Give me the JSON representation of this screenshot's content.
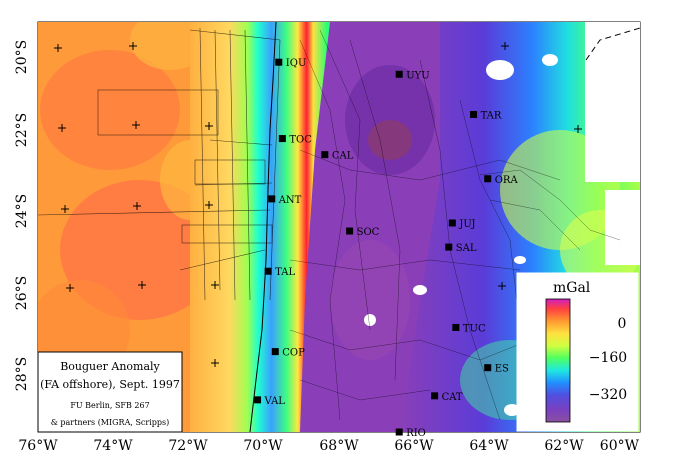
{
  "map": {
    "lon_ticks": [
      "76°W",
      "74°W",
      "72°W",
      "70°W",
      "68°W",
      "66°W",
      "64°W",
      "62°W",
      "60°W"
    ],
    "lat_ticks": [
      "20°S",
      "22°S",
      "24°S",
      "26°S",
      "28°S"
    ],
    "cities": [
      {
        "name": "IQU",
        "lon": -70.2,
        "lat": -20.2
      },
      {
        "name": "UYU",
        "lon": -66.8,
        "lat": -20.5
      },
      {
        "name": "TAR",
        "lon": -64.7,
        "lat": -21.5
      },
      {
        "name": "TOC",
        "lon": -70.1,
        "lat": -22.1
      },
      {
        "name": "CAL",
        "lon": -68.9,
        "lat": -22.5
      },
      {
        "name": "ORA",
        "lon": -64.3,
        "lat": -23.1
      },
      {
        "name": "ANT",
        "lon": -70.4,
        "lat": -23.6
      },
      {
        "name": "JUJ",
        "lon": -65.3,
        "lat": -24.2
      },
      {
        "name": "SOC",
        "lon": -68.2,
        "lat": -24.4
      },
      {
        "name": "SAL",
        "lon": -65.4,
        "lat": -24.8
      },
      {
        "name": "TAL",
        "lon": -70.5,
        "lat": -25.4
      },
      {
        "name": "TUC",
        "lon": -65.2,
        "lat": -26.8
      },
      {
        "name": "COP",
        "lon": -70.3,
        "lat": -27.4
      },
      {
        "name": "ES",
        "lon": -64.3,
        "lat": -27.8
      },
      {
        "name": "CAT",
        "lon": -65.8,
        "lat": -28.5
      },
      {
        "name": "VAL",
        "lon": -70.8,
        "lat": -28.6
      },
      {
        "name": "RIO",
        "lon": -66.8,
        "lat": -29.4
      }
    ]
  },
  "colorbar": {
    "title": "mGal",
    "ticks": [
      "0",
      "−160",
      "−320"
    ],
    "colors": [
      "#d020c0",
      "#ff4040",
      "#ff9a30",
      "#ffe040",
      "#d0ff40",
      "#50ff60",
      "#20e8e0",
      "#2090ff",
      "#5050e0",
      "#7a40c0",
      "#8a50a0"
    ]
  },
  "caption": {
    "line1": "Bouguer Anomaly",
    "line2": "(FA offshore), Sept. 1997",
    "line3": "FU Berlin, SFB 267",
    "line4": "& partners (MIGRA, Scripps)"
  }
}
